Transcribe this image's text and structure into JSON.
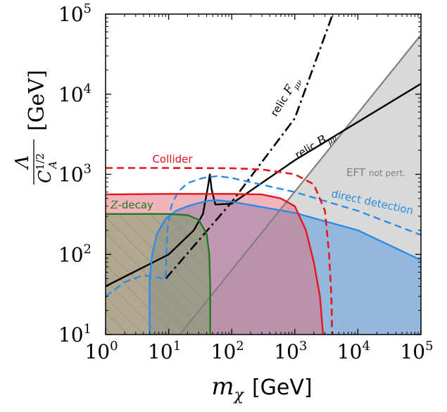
{
  "chart_data": {
    "type": "line",
    "xscale": "log",
    "yscale": "log",
    "xlim": [
      1,
      100000
    ],
    "ylim": [
      10,
      100000
    ],
    "grid": false,
    "xlabel": {
      "var": "m",
      "sub": "χ",
      "unit": "[GeV]"
    },
    "ylabel": {
      "num": "Λ",
      "den": "C",
      "den_sup": "1/2",
      "den_sub": "A",
      "unit": "[GeV]"
    },
    "x_ticks": [
      {
        "value": 1,
        "base": "10",
        "exp": "0"
      },
      {
        "value": 10,
        "base": "10",
        "exp": "1"
      },
      {
        "value": 100,
        "base": "10",
        "exp": "2"
      },
      {
        "value": 1000,
        "base": "10",
        "exp": "3"
      },
      {
        "value": 10000,
        "base": "10",
        "exp": "4"
      },
      {
        "value": 100000,
        "base": "10",
        "exp": "5"
      }
    ],
    "y_ticks": [
      {
        "value": 10,
        "base": "10",
        "exp": "1"
      },
      {
        "value": 100,
        "base": "10",
        "exp": "2"
      },
      {
        "value": 1000,
        "base": "10",
        "exp": "3"
      },
      {
        "value": 10000,
        "base": "10",
        "exp": "4"
      },
      {
        "value": 100000,
        "base": "10",
        "exp": "5"
      }
    ],
    "regions": [
      {
        "name": "EFT not pert.",
        "fill": "#d9d9d9",
        "opacity": 1,
        "points": [
          [
            15,
            10
          ],
          [
            100000,
            55000
          ],
          [
            100000,
            10
          ]
        ]
      },
      {
        "name": "direct detection",
        "fill": "#6fa6dc",
        "opacity": 0.65,
        "points": [
          [
            5,
            10
          ],
          [
            5,
            50
          ],
          [
            5.5,
            100
          ],
          [
            6.5,
            180
          ],
          [
            9,
            280
          ],
          [
            13,
            350
          ],
          [
            20,
            400
          ],
          [
            30,
            440
          ],
          [
            45,
            470
          ],
          [
            60,
            475
          ],
          [
            100,
            455
          ],
          [
            1000,
            330
          ],
          [
            10000,
            200
          ],
          [
            100000,
            85
          ],
          [
            100000,
            10
          ]
        ]
      },
      {
        "name": "Collider",
        "fill": "#e36a7a",
        "opacity": 0.5,
        "points": [
          [
            1,
            10
          ],
          [
            1,
            560
          ],
          [
            10,
            570
          ],
          [
            100,
            570
          ],
          [
            300,
            560
          ],
          [
            600,
            500
          ],
          [
            1000,
            400
          ],
          [
            1500,
            200
          ],
          [
            2000,
            80
          ],
          [
            2500,
            30
          ],
          [
            2800,
            10
          ]
        ]
      },
      {
        "name": "Z-decay",
        "fill": "#7d9e6a",
        "opacity": 0.55,
        "points": [
          [
            1,
            10
          ],
          [
            1,
            320
          ],
          [
            10,
            320
          ],
          [
            20,
            310
          ],
          [
            30,
            270
          ],
          [
            40,
            180
          ],
          [
            44,
            100
          ],
          [
            45.5,
            10
          ]
        ]
      }
    ],
    "series": [
      {
        "name": "EFT not pert.",
        "color": "#808080",
        "dash": "solid",
        "width": 2.2,
        "x": [
          15,
          100000
        ],
        "y": [
          10,
          55000
        ]
      },
      {
        "name": "relic F",
        "color": "#000000",
        "dash": "dashdot",
        "width": 2.6,
        "x": [
          9,
          100,
          1000,
          4000
        ],
        "y": [
          50,
          450,
          5000,
          100000
        ]
      },
      {
        "name": "relic B",
        "color": "#000000",
        "dash": "solid",
        "width": 2.4,
        "x": [
          1,
          10,
          25,
          35,
          42,
          45,
          48,
          55,
          100,
          1000,
          10000,
          100000
        ],
        "y": [
          40,
          100,
          200,
          320,
          700,
          1000,
          650,
          420,
          430,
          1500,
          4500,
          13500
        ]
      },
      {
        "name": "direct detection dashed",
        "color": "#2b8ce8",
        "dash": "dashed",
        "width": 2.4,
        "x": [
          1,
          2,
          4,
          8,
          9,
          9.2,
          9.5,
          11,
          14,
          20,
          35,
          60,
          100,
          1000,
          10000,
          100000
        ],
        "y": [
          30,
          45,
          55,
          50,
          50,
          100,
          200,
          400,
          600,
          780,
          900,
          950,
          900,
          600,
          350,
          175
        ]
      },
      {
        "name": "direct detection solid",
        "color": "#2b8ce8",
        "dash": "solid",
        "width": 2.4,
        "x": [
          5,
          5,
          5.5,
          6.5,
          9,
          13,
          20,
          30,
          45,
          60,
          100,
          1000,
          10000,
          100000
        ],
        "y": [
          10,
          50,
          100,
          180,
          280,
          350,
          400,
          440,
          470,
          475,
          455,
          330,
          200,
          85
        ]
      },
      {
        "name": "Collider dashed",
        "color": "#e8141e",
        "dash": "dashed",
        "width": 2.6,
        "x": [
          1,
          10,
          100,
          300,
          1000,
          2000,
          3000,
          3500,
          3800,
          3900
        ],
        "y": [
          1200,
          1200,
          1190,
          1150,
          1000,
          750,
          350,
          100,
          30,
          10
        ]
      },
      {
        "name": "Collider solid",
        "color": "#e8141e",
        "dash": "solid",
        "width": 2.4,
        "x": [
          1,
          10,
          100,
          300,
          600,
          1000,
          1500,
          2000,
          2500,
          2800
        ],
        "y": [
          560,
          570,
          570,
          560,
          500,
          400,
          200,
          80,
          30,
          10
        ]
      },
      {
        "name": "Z-decay",
        "color": "#1e7a1e",
        "dash": "solid",
        "width": 2.4,
        "x": [
          1,
          10,
          20,
          30,
          40,
          44,
          45.5,
          45.5
        ],
        "y": [
          320,
          320,
          310,
          270,
          180,
          100,
          40,
          10
        ]
      }
    ],
    "annotations": [
      {
        "id": "relic-f",
        "color": "#000000",
        "main": "relic",
        "math": "F",
        "sub": "μν",
        "angle": -58
      },
      {
        "id": "relic-b",
        "color": "#000000",
        "main": "relic",
        "math": "B",
        "sub": "μν",
        "angle": -30
      },
      {
        "id": "collider",
        "color": "#e8141e",
        "text": "Collider",
        "angle": 0
      },
      {
        "id": "eft",
        "color": "#808080",
        "text": "EFT",
        "small": "not pert.",
        "angle": 0
      },
      {
        "id": "direct-detection",
        "color": "#2b8ce8",
        "text": "direct detection",
        "angle": 12
      },
      {
        "id": "z-decay",
        "color": "#1e7a1e",
        "math": "Z",
        "text": "-decay",
        "angle": 0
      }
    ]
  }
}
